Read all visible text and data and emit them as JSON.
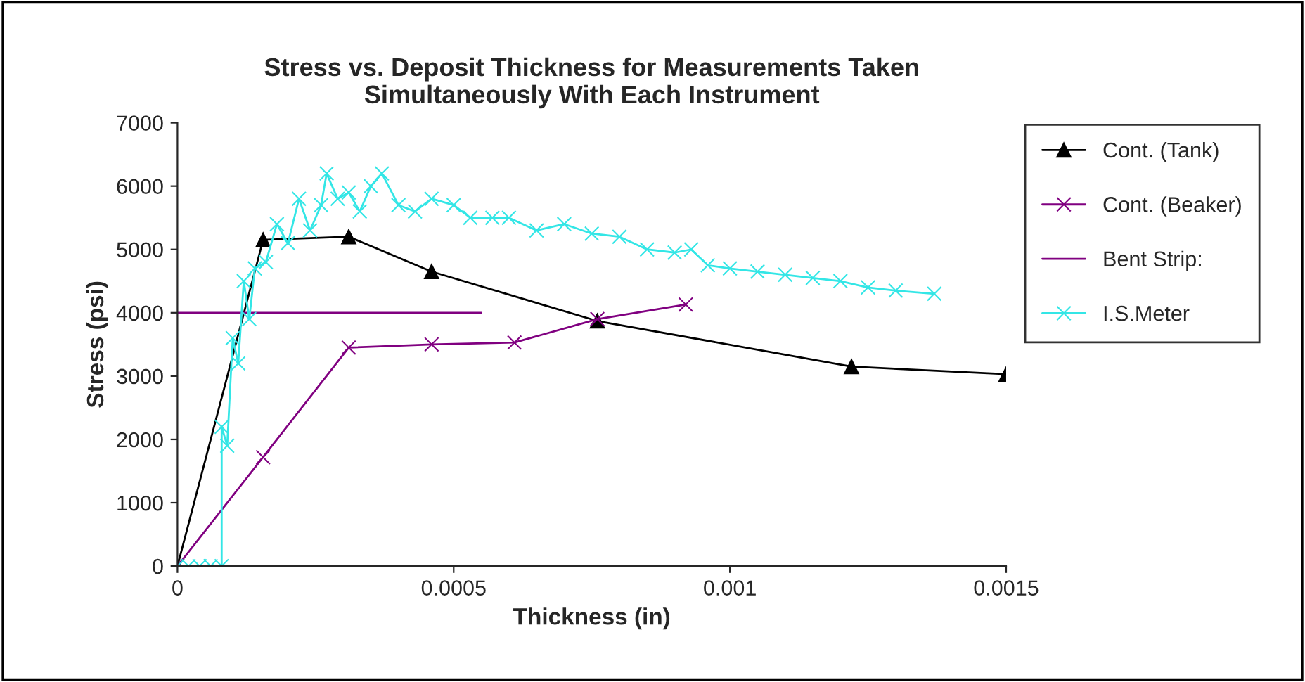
{
  "chart_data": {
    "type": "line",
    "title": "Stress vs. Deposit Thickness for Measurements Taken\nSimultaneously With Each Instrument",
    "xlabel": "Thickness (in)",
    "ylabel": "Stress (psi)",
    "xlim": [
      0,
      0.0015
    ],
    "xticks": [
      0,
      0.0005,
      0.001,
      0.0015
    ],
    "ylim": [
      0,
      7000
    ],
    "yticks": [
      0,
      1000,
      2000,
      3000,
      4000,
      5000,
      6000,
      7000
    ],
    "grid": false,
    "legend": "right",
    "series": [
      {
        "name": "Cont. (Tank)",
        "color": "#000000",
        "marker": "triangle",
        "x": [
          0,
          0.000155,
          0.00031,
          0.00046,
          0.00076,
          0.00122,
          0.0015
        ],
        "values": [
          0,
          5150,
          5200,
          4650,
          3870,
          3150,
          3030
        ]
      },
      {
        "name": "Cont. (Beaker)",
        "color": "#800080",
        "marker": "cross",
        "x": [
          0,
          0.000155,
          0.00031,
          0.00046,
          0.00061,
          0.00076,
          0.00092
        ],
        "values": [
          0,
          1720,
          3450,
          3500,
          3530,
          3900,
          4130
        ]
      },
      {
        "name": "Bent Strip:",
        "color": "#800080",
        "marker": "none",
        "x": [
          0,
          0.00055
        ],
        "values": [
          4000,
          4000
        ]
      },
      {
        "name": "I.S.Meter",
        "color": "#33e6e6",
        "marker": "cross",
        "x": [
          0,
          2e-05,
          4e-05,
          6e-05,
          8e-05,
          8e-05,
          9e-05,
          0.0001,
          0.00011,
          0.00012,
          0.00013,
          0.00014,
          0.00016,
          0.00018,
          0.0002,
          0.00022,
          0.00024,
          0.00026,
          0.00027,
          0.00029,
          0.00031,
          0.00033,
          0.00035,
          0.00037,
          0.0004,
          0.00043,
          0.00046,
          0.0005,
          0.00053,
          0.00057,
          0.0006,
          0.00065,
          0.0007,
          0.00075,
          0.0008,
          0.00085,
          0.0009,
          0.00093,
          0.00096,
          0.001,
          0.00105,
          0.0011,
          0.00115,
          0.0012,
          0.00125,
          0.0013,
          0.00137
        ],
        "values": [
          0,
          0,
          0,
          0,
          0,
          2200,
          1900,
          3600,
          3200,
          4500,
          3900,
          4700,
          4800,
          5400,
          5100,
          5800,
          5300,
          5700,
          6200,
          5800,
          5900,
          5600,
          6000,
          6200,
          5700,
          5600,
          5800,
          5700,
          5500,
          5500,
          5500,
          5300,
          5400,
          5250,
          5200,
          5000,
          4950,
          5000,
          4750,
          4700,
          4650,
          4600,
          4550,
          4500,
          4400,
          4350,
          4300
        ]
      }
    ]
  }
}
